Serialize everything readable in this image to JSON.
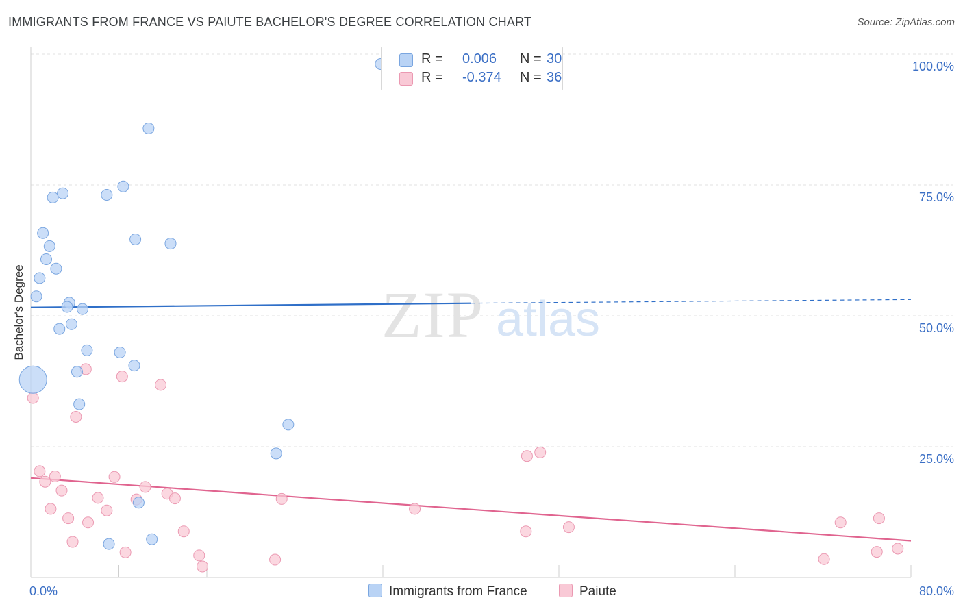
{
  "title": "IMMIGRANTS FROM FRANCE VS PAIUTE BACHELOR'S DEGREE CORRELATION CHART",
  "source": "Source: ZipAtlas.com",
  "watermark": {
    "zip": "ZIP",
    "atlas": "atlas"
  },
  "legend": {
    "r_label": "R =",
    "n_label": "N =",
    "rows": [
      {
        "r": "0.006",
        "n": "30",
        "color": "#b9d3f5",
        "border": "#7aa6e0"
      },
      {
        "r": "-0.374",
        "n": "36",
        "color": "#f9c9d6",
        "border": "#eb99b2"
      }
    ]
  },
  "bottom_legend": [
    {
      "label": "Immigrants from France",
      "color": "#b9d3f5",
      "border": "#7aa6e0"
    },
    {
      "label": "Paiute",
      "color": "#f9c9d6",
      "border": "#eb99b2"
    }
  ],
  "chart_data": {
    "type": "scatter",
    "title": "IMMIGRANTS FROM FRANCE VS PAIUTE BACHELOR'S DEGREE CORRELATION CHART",
    "xlabel": "",
    "ylabel": "Bachelor's Degree",
    "xlim": [
      0,
      80
    ],
    "ylim": [
      0,
      100
    ],
    "x_tick_labels": [
      {
        "value": 0,
        "label": "0.0%"
      },
      {
        "value": 80,
        "label": "80.0%"
      }
    ],
    "y_tick_labels": [
      {
        "value": 25,
        "label": "25.0%"
      },
      {
        "value": 50,
        "label": "50.0%"
      },
      {
        "value": 75,
        "label": "75.0%"
      },
      {
        "value": 100,
        "label": "100.0%"
      }
    ],
    "grid": true,
    "series": [
      {
        "name": "Immigrants from France",
        "color": "#b9d3f5",
        "stroke": "#7aa6e0",
        "line_color": "#2f6fc8",
        "trend": {
          "x": [
            0,
            40
          ],
          "y": [
            51.6,
            52.4
          ],
          "dashed_to": [
            80,
            53.1
          ]
        },
        "points": [
          {
            "x": 31.8,
            "y": 98.1
          },
          {
            "x": 10.7,
            "y": 85.8
          },
          {
            "x": 8.4,
            "y": 74.7
          },
          {
            "x": 6.9,
            "y": 73.1
          },
          {
            "x": 2.9,
            "y": 73.4
          },
          {
            "x": 2.0,
            "y": 72.6
          },
          {
            "x": 1.1,
            "y": 65.8
          },
          {
            "x": 9.5,
            "y": 64.6
          },
          {
            "x": 12.7,
            "y": 63.8
          },
          {
            "x": 1.7,
            "y": 63.3
          },
          {
            "x": 1.4,
            "y": 60.8
          },
          {
            "x": 2.3,
            "y": 59.0
          },
          {
            "x": 0.8,
            "y": 57.2
          },
          {
            "x": 0.5,
            "y": 53.7
          },
          {
            "x": 3.5,
            "y": 52.5
          },
          {
            "x": 3.3,
            "y": 51.7
          },
          {
            "x": 4.7,
            "y": 51.3
          },
          {
            "x": 3.7,
            "y": 48.4
          },
          {
            "x": 2.6,
            "y": 47.5
          },
          {
            "x": 5.1,
            "y": 43.4
          },
          {
            "x": 8.1,
            "y": 43.0
          },
          {
            "x": 9.4,
            "y": 40.5
          },
          {
            "x": 4.2,
            "y": 39.3
          },
          {
            "x": 0.2,
            "y": 37.8,
            "big": true
          },
          {
            "x": 4.4,
            "y": 33.1
          },
          {
            "x": 23.4,
            "y": 29.2
          },
          {
            "x": 22.3,
            "y": 23.7
          },
          {
            "x": 9.8,
            "y": 14.3
          },
          {
            "x": 11.0,
            "y": 7.3
          },
          {
            "x": 7.1,
            "y": 6.4
          }
        ]
      },
      {
        "name": "Paiute",
        "color": "#f9c9d6",
        "stroke": "#eb99b2",
        "line_color": "#e0648f",
        "trend": {
          "x": [
            0,
            80
          ],
          "y": [
            19.0,
            7.0
          ]
        },
        "points": [
          {
            "x": 5.0,
            "y": 39.8
          },
          {
            "x": 8.3,
            "y": 38.4
          },
          {
            "x": 11.8,
            "y": 36.8
          },
          {
            "x": 0.2,
            "y": 34.3
          },
          {
            "x": 4.1,
            "y": 30.7
          },
          {
            "x": 46.3,
            "y": 23.9
          },
          {
            "x": 45.1,
            "y": 23.2
          },
          {
            "x": 0.8,
            "y": 20.3
          },
          {
            "x": 2.2,
            "y": 19.3
          },
          {
            "x": 7.6,
            "y": 19.2
          },
          {
            "x": 1.3,
            "y": 18.3
          },
          {
            "x": 10.4,
            "y": 17.3
          },
          {
            "x": 2.8,
            "y": 16.6
          },
          {
            "x": 12.4,
            "y": 16.0
          },
          {
            "x": 6.1,
            "y": 15.2
          },
          {
            "x": 13.1,
            "y": 15.1
          },
          {
            "x": 9.6,
            "y": 14.9
          },
          {
            "x": 22.8,
            "y": 15.0
          },
          {
            "x": 1.8,
            "y": 13.1
          },
          {
            "x": 34.9,
            "y": 13.1
          },
          {
            "x": 6.9,
            "y": 12.8
          },
          {
            "x": 3.4,
            "y": 11.3
          },
          {
            "x": 5.2,
            "y": 10.5
          },
          {
            "x": 77.1,
            "y": 11.3
          },
          {
            "x": 73.6,
            "y": 10.5
          },
          {
            "x": 48.9,
            "y": 9.6
          },
          {
            "x": 13.9,
            "y": 8.8
          },
          {
            "x": 45.0,
            "y": 8.8
          },
          {
            "x": 3.8,
            "y": 6.8
          },
          {
            "x": 8.6,
            "y": 4.8
          },
          {
            "x": 15.3,
            "y": 4.2
          },
          {
            "x": 76.9,
            "y": 4.9
          },
          {
            "x": 78.8,
            "y": 5.5
          },
          {
            "x": 22.2,
            "y": 3.4
          },
          {
            "x": 72.1,
            "y": 3.5
          },
          {
            "x": 15.6,
            "y": 2.1
          }
        ]
      }
    ]
  }
}
